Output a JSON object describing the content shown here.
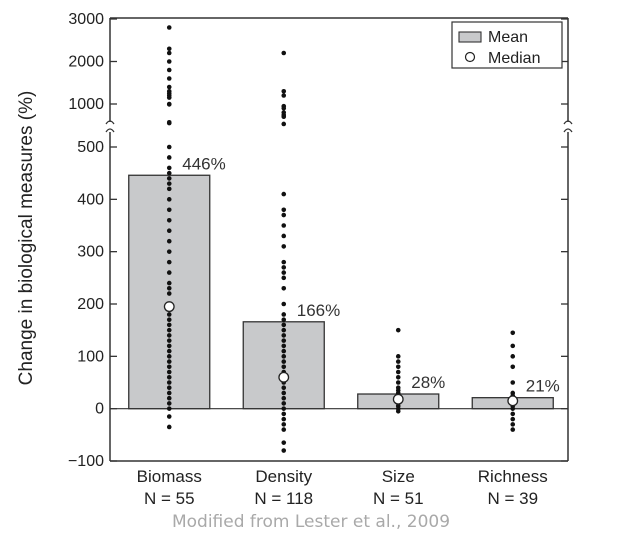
{
  "chart_data": {
    "type": "bar",
    "ylabel": "Change in biological measures (%)",
    "y_axis": {
      "broken": true,
      "lower_range": [
        -100,
        500
      ],
      "upper_range": [
        1000,
        3000
      ],
      "lower_ticks": [
        -100,
        0,
        100,
        200,
        300,
        400,
        500
      ],
      "upper_ticks": [
        1000,
        2000,
        3000
      ]
    },
    "categories": [
      "Biomass",
      "Density",
      "Size",
      "Richness"
    ],
    "n_labels": [
      "N = 55",
      "N = 118",
      "N = 51",
      "N = 39"
    ],
    "series": [
      {
        "name": "Mean",
        "values": [
          446,
          166,
          28,
          21
        ]
      },
      {
        "name": "Median",
        "values": [
          195,
          60,
          18,
          15
        ]
      }
    ],
    "bar_labels": [
      "446%",
      "166%",
      "28%",
      "21%"
    ],
    "points": [
      [
        2800,
        2300,
        2200,
        2000,
        1800,
        1600,
        1400,
        1300,
        1250,
        1200,
        1150,
        1000,
        990,
        570,
        550,
        500,
        480,
        460,
        450,
        440,
        430,
        420,
        400,
        380,
        360,
        340,
        320,
        300,
        280,
        260,
        240,
        230,
        220,
        200,
        180,
        170,
        160,
        150,
        140,
        130,
        120,
        110,
        100,
        90,
        80,
        70,
        60,
        50,
        40,
        30,
        20,
        10,
        0,
        -15,
        -35
      ],
      [
        2200,
        1300,
        1200,
        950,
        900,
        800,
        740,
        700,
        530,
        410,
        380,
        370,
        350,
        330,
        310,
        280,
        270,
        260,
        250,
        230,
        200,
        180,
        170,
        160,
        150,
        140,
        130,
        120,
        110,
        100,
        90,
        80,
        70,
        60,
        50,
        40,
        30,
        20,
        10,
        0,
        -10,
        -20,
        -30,
        -40,
        -65,
        -80
      ],
      [
        150,
        100,
        90,
        80,
        70,
        60,
        50,
        40,
        35,
        30,
        25,
        20,
        15,
        10,
        5,
        0,
        -5
      ],
      [
        145,
        120,
        100,
        80,
        50,
        30,
        25,
        20,
        15,
        10,
        5,
        0,
        -10,
        -20,
        -30,
        -40
      ]
    ],
    "legend": {
      "position": "top-right",
      "entries": [
        "Mean",
        "Median"
      ]
    },
    "grid": false,
    "colors": {
      "bar_fill": "#c8c9cb",
      "bar_stroke": "#333333",
      "point": "#111111",
      "median_fill": "#ffffff"
    }
  },
  "credit": "Modified from Lester et al., 2009"
}
